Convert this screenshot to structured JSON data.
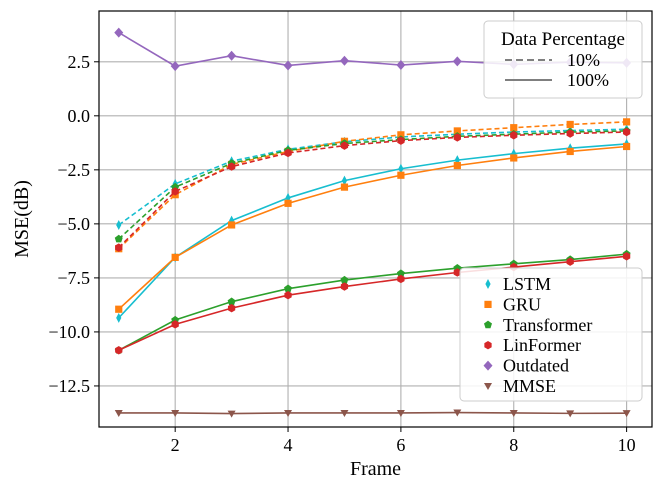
{
  "chart_data": {
    "type": "line",
    "xlabel": "Frame",
    "ylabel": "MSE(dB)",
    "x": [
      1,
      2,
      3,
      4,
      5,
      6,
      7,
      8,
      9,
      10
    ],
    "xlim": [
      0.65,
      10.45
    ],
    "ylim": [
      -14.4,
      4.85
    ],
    "xticks": [
      2,
      4,
      6,
      8,
      10
    ],
    "xtick_labels": [
      "2",
      "4",
      "6",
      "8",
      "10"
    ],
    "yticks": [
      2.5,
      0.0,
      -2.5,
      -5.0,
      -7.5,
      -10.0,
      -12.5
    ],
    "ytick_labels": [
      "2.5",
      "0.0",
      "−2.5",
      "−5.0",
      "−7.5",
      "−10.0",
      "−12.5"
    ],
    "grid": true,
    "series": [
      {
        "name": "LSTM",
        "color": "#17becf",
        "marker": "thin_diamond",
        "values_100": [
          -9.35,
          -6.55,
          -4.85,
          -3.8,
          -3.0,
          -2.45,
          -2.05,
          -1.75,
          -1.5,
          -1.3
        ],
        "values_10": [
          -5.05,
          -3.15,
          -2.1,
          -1.55,
          -1.2,
          -0.98,
          -0.85,
          -0.75,
          -0.68,
          -0.62
        ]
      },
      {
        "name": "GRU",
        "color": "#ff7f0e",
        "marker": "square",
        "values_100": [
          -8.95,
          -6.55,
          -5.05,
          -4.05,
          -3.3,
          -2.75,
          -2.3,
          -1.95,
          -1.65,
          -1.42
        ],
        "values_10": [
          -6.15,
          -3.65,
          -2.25,
          -1.65,
          -1.18,
          -0.88,
          -0.7,
          -0.55,
          -0.4,
          -0.28
        ]
      },
      {
        "name": "Transformer",
        "color": "#2ca02c",
        "marker": "pentagon",
        "values_100": [
          -10.85,
          -9.45,
          -8.6,
          -8.0,
          -7.6,
          -7.3,
          -7.05,
          -6.85,
          -6.65,
          -6.4
        ],
        "values_10": [
          -5.7,
          -3.3,
          -2.2,
          -1.6,
          -1.28,
          -1.1,
          -0.95,
          -0.85,
          -0.75,
          -0.7
        ]
      },
      {
        "name": "LinFormer",
        "color": "#d62728",
        "marker": "hexagon",
        "values_100": [
          -10.85,
          -9.65,
          -8.9,
          -8.3,
          -7.9,
          -7.55,
          -7.25,
          -7.0,
          -6.75,
          -6.5
        ],
        "values_10": [
          -6.1,
          -3.5,
          -2.35,
          -1.72,
          -1.38,
          -1.15,
          -1.0,
          -0.9,
          -0.82,
          -0.75
        ]
      },
      {
        "name": "Outdated",
        "color": "#9467bd",
        "marker": "diamond",
        "values_100": [
          3.85,
          2.3,
          2.78,
          2.33,
          2.55,
          2.35,
          2.52,
          2.38,
          2.48,
          2.45
        ]
      },
      {
        "name": "MMSE",
        "color": "#8c564b",
        "marker": "triangle_down",
        "values_100": [
          -13.75,
          -13.75,
          -13.78,
          -13.75,
          -13.75,
          -13.75,
          -13.73,
          -13.75,
          -13.77,
          -13.76
        ]
      }
    ],
    "legend_style": {
      "title": "Data Percentage",
      "placement": "top-right",
      "entries": [
        {
          "label": "10%",
          "linestyle": "dashed",
          "color": "#7f7f7f"
        },
        {
          "label": "100%",
          "linestyle": "solid",
          "color": "#7f7f7f"
        }
      ]
    },
    "legend_models": {
      "placement": "lower-right"
    }
  }
}
